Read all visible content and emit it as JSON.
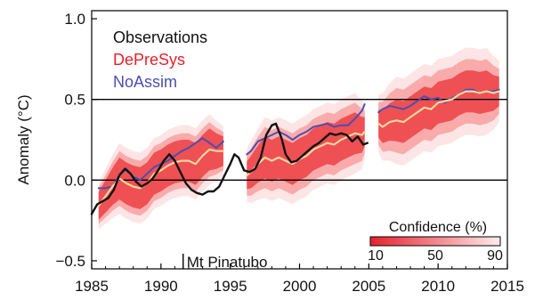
{
  "chart_data": {
    "type": "line",
    "title": "",
    "xlabel": "",
    "ylabel": "Anomaly (°C)",
    "xlim": [
      1985,
      2015
    ],
    "ylim": [
      -0.55,
      1.05
    ],
    "x_ticks": [
      1985,
      1990,
      1995,
      2000,
      2005,
      2010,
      2015
    ],
    "x_tick_labels": [
      "1985",
      "1990",
      "1995",
      "2000",
      "2005",
      "2010",
      "2015"
    ],
    "y_ticks": [
      -0.5,
      0.0,
      0.5,
      1.0
    ],
    "y_tick_labels": [
      "−0.5",
      "0.0",
      "0.5",
      "1.0"
    ],
    "reference_lines": [
      0.0,
      0.5
    ],
    "grid": false,
    "legend_position": "top-left",
    "series": [
      {
        "name": "Observations",
        "color": "#111111",
        "points": [
          [
            1985.0,
            -0.21
          ],
          [
            1985.4,
            -0.15
          ],
          [
            1985.8,
            -0.13
          ],
          [
            1986.2,
            -0.11
          ],
          [
            1986.6,
            -0.06
          ],
          [
            1987.0,
            0.03
          ],
          [
            1987.4,
            0.07
          ],
          [
            1987.8,
            0.04
          ],
          [
            1988.2,
            -0.01
          ],
          [
            1988.6,
            -0.04
          ],
          [
            1989.0,
            -0.02
          ],
          [
            1989.4,
            0.01
          ],
          [
            1989.8,
            0.06
          ],
          [
            1990.2,
            0.12
          ],
          [
            1990.6,
            0.16
          ],
          [
            1991.0,
            0.12
          ],
          [
            1991.4,
            0.05
          ],
          [
            1991.8,
            -0.02
          ],
          [
            1992.2,
            -0.06
          ],
          [
            1992.6,
            -0.08
          ],
          [
            1993.0,
            -0.09
          ],
          [
            1993.4,
            -0.07
          ],
          [
            1993.8,
            -0.07
          ],
          [
            1994.2,
            -0.04
          ],
          [
            1994.6,
            0.03
          ],
          [
            1995.0,
            0.1
          ],
          [
            1995.3,
            0.16
          ],
          [
            1995.6,
            0.14
          ],
          [
            1996.0,
            0.06
          ],
          [
            1996.4,
            0.05
          ],
          [
            1996.8,
            0.07
          ],
          [
            1997.2,
            0.14
          ],
          [
            1997.6,
            0.28
          ],
          [
            1998.0,
            0.34
          ],
          [
            1998.3,
            0.35
          ],
          [
            1998.7,
            0.26
          ],
          [
            1999.0,
            0.16
          ],
          [
            1999.4,
            0.11
          ],
          [
            1999.8,
            0.12
          ],
          [
            2000.2,
            0.15
          ],
          [
            2000.6,
            0.18
          ],
          [
            2001.0,
            0.21
          ],
          [
            2001.4,
            0.23
          ],
          [
            2001.8,
            0.26
          ],
          [
            2002.2,
            0.29
          ],
          [
            2002.6,
            0.28
          ],
          [
            2003.0,
            0.29
          ],
          [
            2003.4,
            0.28
          ],
          [
            2003.8,
            0.24
          ],
          [
            2004.2,
            0.27
          ],
          [
            2004.6,
            0.22
          ],
          [
            2004.9,
            0.23
          ]
        ]
      },
      {
        "name": "DePreSys",
        "color": "#e8212c",
        "median_color": "#f6d79c",
        "segments": [
          {
            "points": [
              [
                1985.5,
                -0.16
              ],
              [
                1986.0,
                -0.1
              ],
              [
                1986.5,
                -0.04
              ],
              [
                1987.0,
                0.01
              ],
              [
                1987.5,
                -0.02
              ],
              [
                1988.0,
                -0.04
              ],
              [
                1988.5,
                -0.05
              ],
              [
                1989.0,
                -0.02
              ],
              [
                1989.5,
                0.04
              ],
              [
                1990.0,
                0.06
              ],
              [
                1990.5,
                0.09
              ],
              [
                1991.0,
                0.11
              ],
              [
                1991.5,
                0.12
              ],
              [
                1992.0,
                0.12
              ],
              [
                1992.5,
                0.1
              ],
              [
                1993.0,
                0.15
              ],
              [
                1993.5,
                0.19
              ],
              [
                1994.0,
                0.18
              ],
              [
                1994.5,
                0.18
              ]
            ],
            "band_halfwidth": [
              0.13,
              0.17,
              0.22
            ]
          },
          {
            "points": [
              [
                1996.2,
                0.03
              ],
              [
                1996.5,
                0.05
              ],
              [
                1997.0,
                0.1
              ],
              [
                1997.5,
                0.14
              ],
              [
                1998.0,
                0.12
              ],
              [
                1998.5,
                0.14
              ],
              [
                1999.0,
                0.12
              ],
              [
                1999.5,
                0.1
              ],
              [
                2000.0,
                0.13
              ],
              [
                2000.5,
                0.15
              ],
              [
                2001.0,
                0.19
              ],
              [
                2001.5,
                0.21
              ],
              [
                2002.0,
                0.23
              ],
              [
                2002.5,
                0.22
              ],
              [
                2003.0,
                0.25
              ],
              [
                2003.5,
                0.27
              ],
              [
                2004.0,
                0.29
              ],
              [
                2004.5,
                0.28
              ],
              [
                2004.7,
                0.3
              ]
            ],
            "band_halfwidth": [
              0.13,
              0.19,
              0.25
            ]
          },
          {
            "points": [
              [
                2005.7,
                0.35
              ],
              [
                2006.0,
                0.33
              ],
              [
                2006.5,
                0.36
              ],
              [
                2007.0,
                0.37
              ],
              [
                2007.5,
                0.36
              ],
              [
                2008.0,
                0.39
              ],
              [
                2008.5,
                0.42
              ],
              [
                2009.0,
                0.45
              ],
              [
                2009.5,
                0.44
              ],
              [
                2010.0,
                0.48
              ],
              [
                2010.5,
                0.49
              ],
              [
                2011.0,
                0.5
              ],
              [
                2011.5,
                0.53
              ],
              [
                2012.0,
                0.55
              ],
              [
                2012.5,
                0.55
              ],
              [
                2013.0,
                0.54
              ],
              [
                2013.5,
                0.55
              ],
              [
                2014.0,
                0.54
              ],
              [
                2014.4,
                0.55
              ]
            ],
            "band_halfwidth": [
              0.13,
              0.2,
              0.27
            ]
          }
        ]
      },
      {
        "name": "NoAssim",
        "color": "#4a4fb0",
        "segments": [
          {
            "points": [
              [
                1985.5,
                -0.05
              ],
              [
                1986.0,
                -0.05
              ],
              [
                1986.5,
                -0.04
              ],
              [
                1987.0,
                0.03
              ],
              [
                1987.5,
                0.07
              ],
              [
                1988.0,
                0.02
              ],
              [
                1988.5,
                0.0
              ],
              [
                1989.0,
                0.04
              ],
              [
                1989.5,
                0.08
              ],
              [
                1990.0,
                0.1
              ],
              [
                1990.5,
                0.12
              ],
              [
                1991.0,
                0.15
              ],
              [
                1991.5,
                0.18
              ],
              [
                1992.0,
                0.2
              ],
              [
                1992.5,
                0.23
              ],
              [
                1993.0,
                0.26
              ],
              [
                1993.5,
                0.23
              ],
              [
                1994.0,
                0.2
              ],
              [
                1994.5,
                0.24
              ]
            ]
          },
          {
            "points": [
              [
                1996.2,
                0.16
              ],
              [
                1996.5,
                0.18
              ],
              [
                1997.0,
                0.24
              ],
              [
                1997.5,
                0.26
              ],
              [
                1998.0,
                0.28
              ],
              [
                1998.5,
                0.3
              ],
              [
                1999.0,
                0.28
              ],
              [
                1999.5,
                0.25
              ],
              [
                2000.0,
                0.28
              ],
              [
                2000.5,
                0.3
              ],
              [
                2001.0,
                0.33
              ],
              [
                2001.5,
                0.34
              ],
              [
                2002.0,
                0.35
              ],
              [
                2002.5,
                0.33
              ],
              [
                2003.0,
                0.34
              ],
              [
                2003.5,
                0.34
              ],
              [
                2004.0,
                0.38
              ],
              [
                2004.5,
                0.43
              ],
              [
                2004.7,
                0.47
              ]
            ]
          },
          {
            "points": [
              [
                2005.7,
                0.42
              ],
              [
                2006.0,
                0.44
              ],
              [
                2006.5,
                0.46
              ],
              [
                2007.0,
                0.45
              ],
              [
                2007.5,
                0.44
              ],
              [
                2008.0,
                0.46
              ],
              [
                2008.5,
                0.49
              ],
              [
                2009.0,
                0.52
              ],
              [
                2009.5,
                0.5
              ],
              [
                2010.0,
                0.51
              ],
              [
                2010.5,
                0.48
              ],
              [
                2011.0,
                0.51
              ],
              [
                2011.5,
                0.53
              ],
              [
                2012.0,
                0.56
              ],
              [
                2012.5,
                0.56
              ],
              [
                2013.0,
                0.54
              ],
              [
                2013.5,
                0.55
              ],
              [
                2014.0,
                0.55
              ],
              [
                2014.4,
                0.56
              ]
            ]
          }
        ]
      }
    ],
    "annotations": [
      {
        "text": "Mt Pinatubo",
        "x": 1991.6
      }
    ],
    "colorbar": {
      "title": "Confidence (%)",
      "tick_labels": [
        "10",
        "50",
        "90"
      ],
      "color_from": "#e8212c",
      "color_to": "#fdecec"
    }
  }
}
